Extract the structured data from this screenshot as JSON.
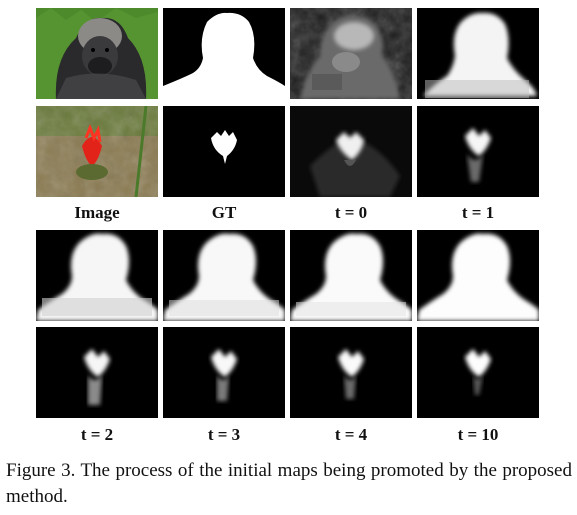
{
  "labels_row1": [
    "Image",
    "GT",
    "t = 0",
    "t = 1"
  ],
  "labels_row2": [
    "t = 2",
    "t = 3",
    "t = 4",
    "t = 10"
  ],
  "caption": "Figure 3. The process of the initial maps being promoted by the proposed method.",
  "images": {
    "gorilla_photo": "photo of a gorilla",
    "flower_photo": "photo of a red flower in grass"
  }
}
